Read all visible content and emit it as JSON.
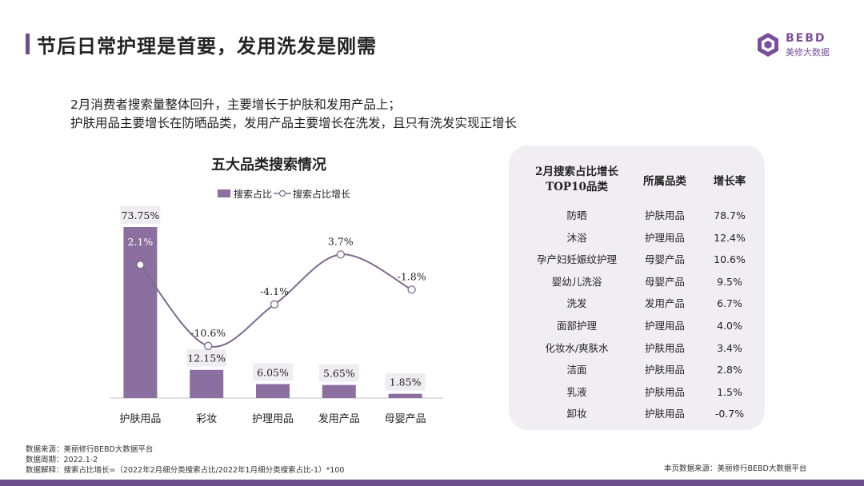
{
  "header": {
    "title": "节后日常护理是首要，发用洗发是刚需",
    "logo_brand": "BEBD",
    "logo_sub": "美修大数据"
  },
  "intro": {
    "line1": "2月消费者搜索量整体回升，主要增长于护肤和发用产品上；",
    "line2": "护肤用品主要增长在防晒品类，发用产品主要增长在洗发，且只有洗发实现正增长"
  },
  "colors": {
    "accent": "#6b4f8a",
    "bar": "#8a6fa0",
    "line": "#7d6a8c",
    "panel": "#f1eef3"
  },
  "chart_data": {
    "type": "bar",
    "title": "五大品类搜索情况",
    "categories": [
      "护肤用品",
      "彩妆",
      "护理用品",
      "发用产品",
      "母婴产品"
    ],
    "series": [
      {
        "name": "搜索占比",
        "kind": "bar",
        "values": [
          73.75,
          12.15,
          6.05,
          5.65,
          1.85
        ],
        "labels": [
          "73.75%",
          "12.15%",
          "6.05%",
          "5.65%",
          "1.85%"
        ]
      },
      {
        "name": "搜索占比增长",
        "kind": "line",
        "values": [
          2.1,
          -10.6,
          -4.1,
          3.7,
          -1.8
        ],
        "labels": [
          "2.1%",
          "-10.6%",
          "-4.1%",
          "3.7%",
          "-1.8%"
        ]
      }
    ],
    "legend": [
      "搜索占比",
      "搜索占比增长"
    ],
    "legend_position": "top",
    "bar_ylim": [
      0,
      80
    ],
    "line_ylim": [
      -14,
      6
    ]
  },
  "table": {
    "headers": [
      "2月搜索占比增长\nTOP10品类",
      "所属品类",
      "增长率"
    ],
    "header_line1": "2月搜索占比增长",
    "header_line2": "TOP10品类",
    "header_cat": "所属品类",
    "header_rate": "增长率",
    "rows": [
      {
        "item": "防晒",
        "category": "护肤用品",
        "rate": "78.7%"
      },
      {
        "item": "沐浴",
        "category": "护理用品",
        "rate": "12.4%"
      },
      {
        "item": "孕产妇妊娠纹护理",
        "category": "母婴产品",
        "rate": "10.6%"
      },
      {
        "item": "婴幼儿洗浴",
        "category": "母婴产品",
        "rate": "9.5%"
      },
      {
        "item": "洗发",
        "category": "发用产品",
        "rate": "6.7%"
      },
      {
        "item": "面部护理",
        "category": "护理用品",
        "rate": "4.0%"
      },
      {
        "item": "化妆水/爽肤水",
        "category": "护肤用品",
        "rate": "3.4%"
      },
      {
        "item": "洁面",
        "category": "护肤用品",
        "rate": "2.8%"
      },
      {
        "item": "乳液",
        "category": "护肤用品",
        "rate": "1.5%"
      },
      {
        "item": "卸妆",
        "category": "护肤用品",
        "rate": "-0.7%"
      }
    ]
  },
  "footer": {
    "source": "数据来源：美丽修行BEBD大数据平台",
    "period": "数据周期：2022.1-2",
    "formula": "数据解释：搜索占比增长=（2022年2月细分类搜索占比/2022年1月细分类搜索占比-1）*100",
    "page_source": "本页数据来源：美丽修行BEBD大数据平台"
  }
}
